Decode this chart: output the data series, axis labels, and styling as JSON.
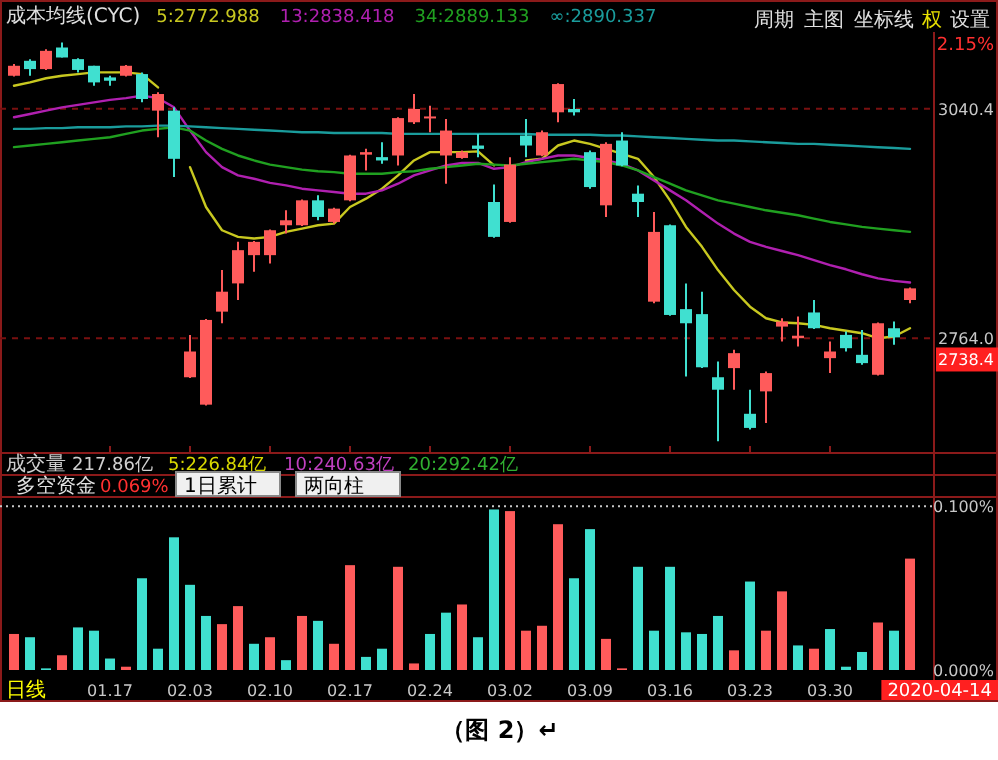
{
  "chart_data": [
    {
      "type": "candlestick",
      "title": "成本均线(CYC)",
      "legend": "top left",
      "grid": "y",
      "tick_labels": "y",
      "categories": [
        null,
        null,
        null,
        null,
        null,
        null,
        "01.17",
        null,
        null,
        null,
        null,
        "02.03",
        null,
        null,
        null,
        null,
        "02.10",
        null,
        null,
        null,
        null,
        "02.17",
        null,
        null,
        null,
        null,
        "02.24",
        null,
        null,
        null,
        null,
        "03.02",
        null,
        null,
        null,
        null,
        "03.09",
        null,
        null,
        null,
        null,
        "03.16",
        null,
        null,
        null,
        null,
        "03.23",
        null,
        null,
        null,
        null,
        "03.30",
        null,
        null,
        null,
        null,
        null
      ],
      "ylim": [
        2627,
        3170
      ],
      "yticks": [
        {
          "value": 2764,
          "label": "2764.0"
        },
        3040.4
      ],
      "ohlc": [
        [
          3080,
          3094,
          3079,
          3092
        ],
        [
          3098,
          3100,
          3080,
          3088
        ],
        [
          3088,
          3112,
          3087,
          3110
        ],
        [
          3114,
          3120,
          3102,
          3102
        ],
        [
          3100,
          3101,
          3084,
          3087
        ],
        [
          3092,
          3092,
          3068,
          3072
        ],
        [
          3078,
          3080,
          3068,
          3074
        ],
        [
          3080,
          3093,
          3079,
          3092
        ],
        [
          3082,
          3084,
          3048,
          3052
        ],
        [
          3038,
          3060,
          3006,
          3058
        ],
        [
          3038,
          3042,
          2958,
          2980
        ],
        [
          2717,
          2768,
          2716,
          2748
        ],
        [
          2684,
          2787,
          2683,
          2786
        ],
        [
          2796,
          2846,
          2782,
          2820
        ],
        [
          2830,
          2880,
          2810,
          2870
        ],
        [
          2864,
          2881,
          2844,
          2880
        ],
        [
          2864,
          2895,
          2854,
          2894
        ],
        [
          2900,
          2918,
          2890,
          2906
        ],
        [
          2900,
          2931,
          2899,
          2930
        ],
        [
          2930,
          2936,
          2906,
          2910
        ],
        [
          2904,
          2921,
          2902,
          2920
        ],
        [
          2930,
          2985,
          2929,
          2984
        ],
        [
          2985,
          2992,
          2966,
          2988
        ],
        [
          2982,
          3000,
          2974,
          2978
        ],
        [
          2984,
          3030,
          2972,
          3029
        ],
        [
          3024,
          3058,
          3022,
          3040
        ],
        [
          3029,
          3044,
          3012,
          3031
        ],
        [
          2984,
          3028,
          2950,
          3014
        ],
        [
          2981,
          2990,
          2980,
          2988
        ],
        [
          2996,
          3010,
          2982,
          2992
        ],
        [
          2928,
          2949,
          2885,
          2886
        ],
        [
          2904,
          2982,
          2903,
          2973
        ],
        [
          3008,
          3028,
          2982,
          2996
        ],
        [
          2984,
          3014,
          2983,
          3012
        ],
        [
          3036,
          3071,
          3024,
          3070
        ],
        [
          3040,
          3052,
          3032,
          3036
        ],
        [
          2988,
          2990,
          2944,
          2946
        ],
        [
          2924,
          3000,
          2910,
          2998
        ],
        [
          3002,
          3012,
          2971,
          2972
        ],
        [
          2938,
          2948,
          2910,
          2928
        ],
        [
          2808,
          2916,
          2806,
          2892
        ],
        [
          2900,
          2901,
          2791,
          2792
        ],
        [
          2799,
          2830,
          2718,
          2782
        ],
        [
          2793,
          2820,
          2728,
          2729
        ],
        [
          2717,
          2736,
          2640,
          2702
        ],
        [
          2728,
          2750,
          2702,
          2746
        ],
        [
          2673,
          2702,
          2654,
          2656
        ],
        [
          2700,
          2724,
          2662,
          2722
        ],
        [
          2778,
          2788,
          2760,
          2784
        ],
        [
          2764,
          2790,
          2754,
          2767
        ],
        [
          2795,
          2810,
          2775,
          2776
        ],
        [
          2740,
          2760,
          2722,
          2748
        ],
        [
          2768,
          2772,
          2748,
          2752
        ],
        [
          2744,
          2774,
          2732,
          2734
        ],
        [
          2720,
          2783,
          2719,
          2782
        ],
        [
          2776,
          2784,
          2756,
          2765
        ],
        [
          2810,
          2825,
          2806,
          2824
        ]
      ],
      "colors": [
        "#ff5b5b",
        "#40e0d0",
        "#ff5b5b",
        "#40e0d0",
        "#40e0d0",
        "#40e0d0",
        "#40e0d0",
        "#ff5b5b",
        "#40e0d0",
        "#ff5b5b",
        "#40e0d0",
        "#ff5b5b",
        "#ff5b5b",
        "#ff5b5b",
        "#ff5b5b",
        "#ff5b5b",
        "#ff5b5b",
        "#ff5b5b",
        "#ff5b5b",
        "#40e0d0",
        "#ff5b5b",
        "#ff5b5b",
        "#ff5b5b",
        "#40e0d0",
        "#ff5b5b",
        "#ff5b5b",
        "#ff5b5b",
        "#ff5b5b",
        "#ff5b5b",
        "#40e0d0",
        "#40e0d0",
        "#ff5b5b",
        "#40e0d0",
        "#ff5b5b",
        "#ff5b5b",
        "#40e0d0",
        "#40e0d0",
        "#ff5b5b",
        "#40e0d0",
        "#40e0d0",
        "#ff5b5b",
        "#40e0d0",
        "#40e0d0",
        "#40e0d0",
        "#40e0d0",
        "#ff5b5b",
        "#40e0d0",
        "#ff5b5b",
        "#ff5b5b",
        "#ff5b5b",
        "#40e0d0",
        "#ff5b5b",
        "#40e0d0",
        "#40e0d0",
        "#ff5b5b",
        "#40e0d0",
        "#ff5b5b"
      ],
      "series": [
        {
          "type": "line",
          "name": "5:2772.988",
          "color": "#c8c820",
          "values": [
            3068,
            3072,
            3077,
            3080,
            3082,
            3084,
            3084,
            3084,
            3082,
            3066,
            null,
            2970,
            2922,
            2894,
            2886,
            2884,
            2886,
            2892,
            2896,
            2900,
            2902,
            2922,
            2932,
            2944,
            2960,
            2978,
            2988,
            2988,
            2988,
            2989,
            2972,
            null,
            2978,
            2980,
            2996,
            3002,
            2998,
            2992,
            2986,
            2980,
            2958,
            2930,
            2898,
            2874,
            2846,
            2822,
            2802,
            2788,
            2783,
            2782,
            2780,
            2776,
            2773,
            2770,
            2764,
            2766,
            2776
          ]
        },
        {
          "type": "line",
          "name": "13:2838.418",
          "color": "#b020b0",
          "values": [
            3030,
            3034,
            3038,
            3042,
            3045,
            3048,
            3051,
            3053,
            3056,
            3053,
            3042,
            3014,
            2988,
            2970,
            2960,
            2956,
            2951,
            2948,
            2944,
            2942,
            2940,
            2938,
            2938,
            2942,
            2950,
            2960,
            2966,
            2972,
            2975,
            2975,
            2968,
            2970,
            2976,
            2980,
            2984,
            2984,
            2981,
            2978,
            2974,
            2966,
            2954,
            2942,
            2930,
            2916,
            2902,
            2890,
            2880,
            2874,
            2869,
            2864,
            2858,
            2852,
            2847,
            2841,
            2836,
            2833,
            2831
          ]
        },
        {
          "type": "line",
          "name": "34:2889.133",
          "color": "#20a020",
          "values": [
            2994,
            2996,
            2998,
            3000,
            3002,
            3004,
            3006,
            3010,
            3014,
            3016,
            3018,
            3014,
            3002,
            2992,
            2984,
            2978,
            2973,
            2970,
            2967,
            2965,
            2964,
            2962,
            2962,
            2962,
            2964,
            2965,
            2968,
            2970,
            2972,
            2974,
            2973,
            2972,
            2974,
            2976,
            2978,
            2980,
            2978,
            2976,
            2972,
            2966,
            2958,
            2950,
            2942,
            2936,
            2930,
            2926,
            2922,
            2918,
            2915,
            2912,
            2908,
            2904,
            2901,
            2898,
            2896,
            2894,
            2892
          ]
        },
        {
          "type": "line",
          "name": "∞:2890.337",
          "color": "#1a9c9c",
          "values": [
            3016,
            3016,
            3017,
            3017,
            3018,
            3018,
            3018,
            3019,
            3019,
            3020,
            3020,
            3019,
            3018,
            3017,
            3016,
            3015,
            3014,
            3013,
            3012,
            3012,
            3011,
            3011,
            3011,
            3011,
            3010,
            3010,
            3010,
            3010,
            3010,
            3010,
            3010,
            3010,
            3010,
            3009,
            3009,
            3009,
            3009,
            3008,
            3008,
            3007,
            3006,
            3005,
            3004,
            3003,
            3002,
            3002,
            3001,
            3000,
            2999,
            2998,
            2998,
            2997,
            2996,
            2995,
            2994,
            2993,
            2992
          ]
        }
      ],
      "annotations": [
        "周期",
        "主图",
        "坐标线",
        "权",
        "设置",
        "2.15%",
        {
          "text": "2738.4",
          "y": 2738.4
        }
      ]
    },
    {
      "type": "bar",
      "title": "多空资金",
      "categories": [
        null,
        null,
        null,
        null,
        null,
        null,
        "01.17",
        null,
        null,
        null,
        null,
        "02.03",
        null,
        null,
        null,
        null,
        "02.10",
        null,
        null,
        null,
        null,
        "02.17",
        null,
        null,
        null,
        null,
        "02.24",
        null,
        null,
        null,
        null,
        "03.02",
        null,
        null,
        null,
        null,
        "03.09",
        null,
        null,
        null,
        null,
        "03.16",
        null,
        null,
        null,
        null,
        "03.23",
        null,
        null,
        null,
        null,
        "03.30",
        null,
        null,
        null,
        null,
        null
      ],
      "ylim": [
        0,
        0.105
      ],
      "yticks": [
        {
          "value": 0.1,
          "label": "0.100%"
        },
        {
          "value": 0,
          "label": "0.000%"
        }
      ],
      "ref_lines": [
        {
          "axis": "y",
          "value": 0.1,
          "line_style": "dotted",
          "color": "#c8c8c8"
        }
      ],
      "values": [
        0.022,
        0.02,
        0.001,
        0.009,
        0.026,
        0.024,
        0.007,
        0.002,
        0.056,
        0.013,
        0.081,
        0.052,
        0.033,
        0.028,
        0.039,
        0.016,
        0.02,
        0.006,
        0.033,
        0.03,
        0.016,
        0.064,
        0.008,
        0.013,
        0.063,
        0.004,
        0.022,
        0.035,
        0.04,
        0.02,
        0.098,
        0.097,
        0.024,
        0.027,
        0.089,
        0.056,
        0.086,
        0.019,
        0.001,
        0.063,
        0.024,
        0.063,
        0.023,
        0.022,
        0.033,
        0.012,
        0.054,
        0.024,
        0.048,
        0.015,
        0.013,
        0.025,
        0.002,
        0.011,
        0.029,
        0.024,
        0.068
      ],
      "colors": [
        "#ff5b5b",
        "#40e0d0",
        "#40e0d0",
        "#ff5b5b",
        "#40e0d0",
        "#40e0d0",
        "#40e0d0",
        "#ff5b5b",
        "#40e0d0",
        "#40e0d0",
        "#40e0d0",
        "#40e0d0",
        "#40e0d0",
        "#ff5b5b",
        "#ff5b5b",
        "#40e0d0",
        "#ff5b5b",
        "#40e0d0",
        "#ff5b5b",
        "#40e0d0",
        "#ff5b5b",
        "#ff5b5b",
        "#40e0d0",
        "#40e0d0",
        "#ff5b5b",
        "#ff5b5b",
        "#40e0d0",
        "#40e0d0",
        "#ff5b5b",
        "#40e0d0",
        "#40e0d0",
        "#ff5b5b",
        "#ff5b5b",
        "#ff5b5b",
        "#ff5b5b",
        "#40e0d0",
        "#40e0d0",
        "#ff5b5b",
        "#ff5b5b",
        "#40e0d0",
        "#40e0d0",
        "#40e0d0",
        "#40e0d0",
        "#40e0d0",
        "#40e0d0",
        "#ff5b5b",
        "#40e0d0",
        "#ff5b5b",
        "#ff5b5b",
        "#40e0d0",
        "#ff5b5b",
        "#40e0d0",
        "#40e0d0",
        "#40e0d0",
        "#ff5b5b",
        "#40e0d0",
        "#ff5b5b"
      ],
      "annotations": [
        "成交量",
        "217.86亿",
        "5:226.84亿",
        "10:240.63亿",
        "20:292.42亿",
        "0.069%",
        "1日累计",
        "两向柱",
        "日线",
        "2020-04-14",
        "（图 2）↵"
      ]
    }
  ]
}
